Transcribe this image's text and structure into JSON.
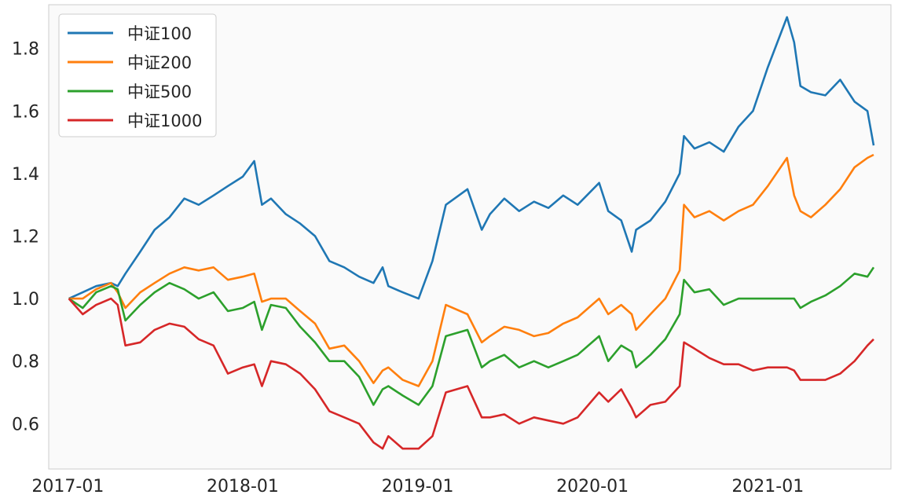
{
  "chart_data": {
    "type": "line",
    "title": "",
    "xlabel": "",
    "ylabel": "",
    "grid": false,
    "legend_position": "upper-left",
    "background": "#fafafa",
    "xlim": [
      "2016-11-22",
      "2021-09-15"
    ],
    "ylim": [
      0.455,
      1.94
    ],
    "x_ticks": [
      "2017-01",
      "2018-01",
      "2019-01",
      "2020-01",
      "2021-01"
    ],
    "y_ticks": [
      "0.6",
      "0.8",
      "1.0",
      "1.2",
      "1.4",
      "1.6",
      "1.8"
    ],
    "x": [
      "2017-01-03",
      "2017-02-01",
      "2017-03-01",
      "2017-04-01",
      "2017-04-15",
      "2017-05-01",
      "2017-06-01",
      "2017-07-01",
      "2017-08-01",
      "2017-09-01",
      "2017-10-01",
      "2017-11-01",
      "2017-12-01",
      "2018-01-01",
      "2018-01-25",
      "2018-02-10",
      "2018-03-01",
      "2018-04-01",
      "2018-05-01",
      "2018-06-01",
      "2018-07-01",
      "2018-08-01",
      "2018-09-01",
      "2018-10-01",
      "2018-10-20",
      "2018-11-01",
      "2018-12-01",
      "2019-01-03",
      "2019-02-01",
      "2019-03-01",
      "2019-04-15",
      "2019-05-15",
      "2019-06-01",
      "2019-07-01",
      "2019-08-01",
      "2019-09-01",
      "2019-10-01",
      "2019-11-01",
      "2019-12-01",
      "2020-01-15",
      "2020-02-03",
      "2020-03-01",
      "2020-03-23",
      "2020-04-01",
      "2020-05-01",
      "2020-06-01",
      "2020-07-01",
      "2020-07-10",
      "2020-08-01",
      "2020-09-01",
      "2020-10-01",
      "2020-11-01",
      "2020-12-01",
      "2021-01-01",
      "2021-02-10",
      "2021-02-25",
      "2021-03-10",
      "2021-04-01",
      "2021-05-01",
      "2021-06-01",
      "2021-07-01",
      "2021-07-28",
      "2021-08-10"
    ],
    "series": [
      {
        "name": "中证100",
        "color": "#1f77b4",
        "values": [
          1.0,
          1.02,
          1.04,
          1.05,
          1.04,
          1.08,
          1.15,
          1.22,
          1.26,
          1.32,
          1.3,
          1.33,
          1.36,
          1.39,
          1.44,
          1.3,
          1.32,
          1.27,
          1.24,
          1.2,
          1.12,
          1.1,
          1.07,
          1.05,
          1.1,
          1.04,
          1.02,
          1.0,
          1.12,
          1.3,
          1.35,
          1.22,
          1.27,
          1.32,
          1.28,
          1.31,
          1.29,
          1.33,
          1.3,
          1.37,
          1.28,
          1.25,
          1.15,
          1.22,
          1.25,
          1.31,
          1.4,
          1.52,
          1.48,
          1.5,
          1.47,
          1.55,
          1.6,
          1.74,
          1.9,
          1.82,
          1.68,
          1.66,
          1.65,
          1.7,
          1.63,
          1.6,
          1.49
        ]
      },
      {
        "name": "中证200",
        "color": "#ff7f0e",
        "values": [
          1.0,
          1.0,
          1.03,
          1.05,
          1.02,
          0.97,
          1.02,
          1.05,
          1.08,
          1.1,
          1.09,
          1.1,
          1.06,
          1.07,
          1.08,
          0.99,
          1.0,
          1.0,
          0.96,
          0.92,
          0.84,
          0.85,
          0.8,
          0.73,
          0.77,
          0.78,
          0.74,
          0.72,
          0.8,
          0.98,
          0.95,
          0.86,
          0.88,
          0.91,
          0.9,
          0.88,
          0.89,
          0.92,
          0.94,
          1.0,
          0.95,
          0.98,
          0.95,
          0.9,
          0.95,
          1.0,
          1.09,
          1.3,
          1.26,
          1.28,
          1.25,
          1.28,
          1.3,
          1.36,
          1.45,
          1.33,
          1.28,
          1.26,
          1.3,
          1.35,
          1.42,
          1.45,
          1.46
        ]
      },
      {
        "name": "中证500",
        "color": "#2ca02c",
        "values": [
          1.0,
          0.97,
          1.02,
          1.04,
          1.03,
          0.93,
          0.98,
          1.02,
          1.05,
          1.03,
          1.0,
          1.02,
          0.96,
          0.97,
          0.99,
          0.9,
          0.98,
          0.97,
          0.91,
          0.86,
          0.8,
          0.8,
          0.75,
          0.66,
          0.71,
          0.72,
          0.69,
          0.66,
          0.72,
          0.88,
          0.9,
          0.78,
          0.8,
          0.82,
          0.78,
          0.8,
          0.78,
          0.8,
          0.82,
          0.88,
          0.8,
          0.85,
          0.83,
          0.78,
          0.82,
          0.87,
          0.95,
          1.06,
          1.02,
          1.03,
          0.98,
          1.0,
          1.0,
          1.0,
          1.0,
          1.0,
          0.97,
          0.99,
          1.01,
          1.04,
          1.08,
          1.07,
          1.1
        ]
      },
      {
        "name": "中证1000",
        "color": "#d62728",
        "values": [
          1.0,
          0.95,
          0.98,
          1.0,
          0.98,
          0.85,
          0.86,
          0.9,
          0.92,
          0.91,
          0.87,
          0.85,
          0.76,
          0.78,
          0.79,
          0.72,
          0.8,
          0.79,
          0.76,
          0.71,
          0.64,
          0.62,
          0.6,
          0.54,
          0.52,
          0.56,
          0.52,
          0.52,
          0.56,
          0.7,
          0.72,
          0.62,
          0.62,
          0.63,
          0.6,
          0.62,
          0.61,
          0.6,
          0.62,
          0.7,
          0.67,
          0.71,
          0.65,
          0.62,
          0.66,
          0.67,
          0.72,
          0.86,
          0.84,
          0.81,
          0.79,
          0.79,
          0.77,
          0.78,
          0.78,
          0.77,
          0.74,
          0.74,
          0.74,
          0.76,
          0.8,
          0.85,
          0.87
        ]
      }
    ]
  }
}
